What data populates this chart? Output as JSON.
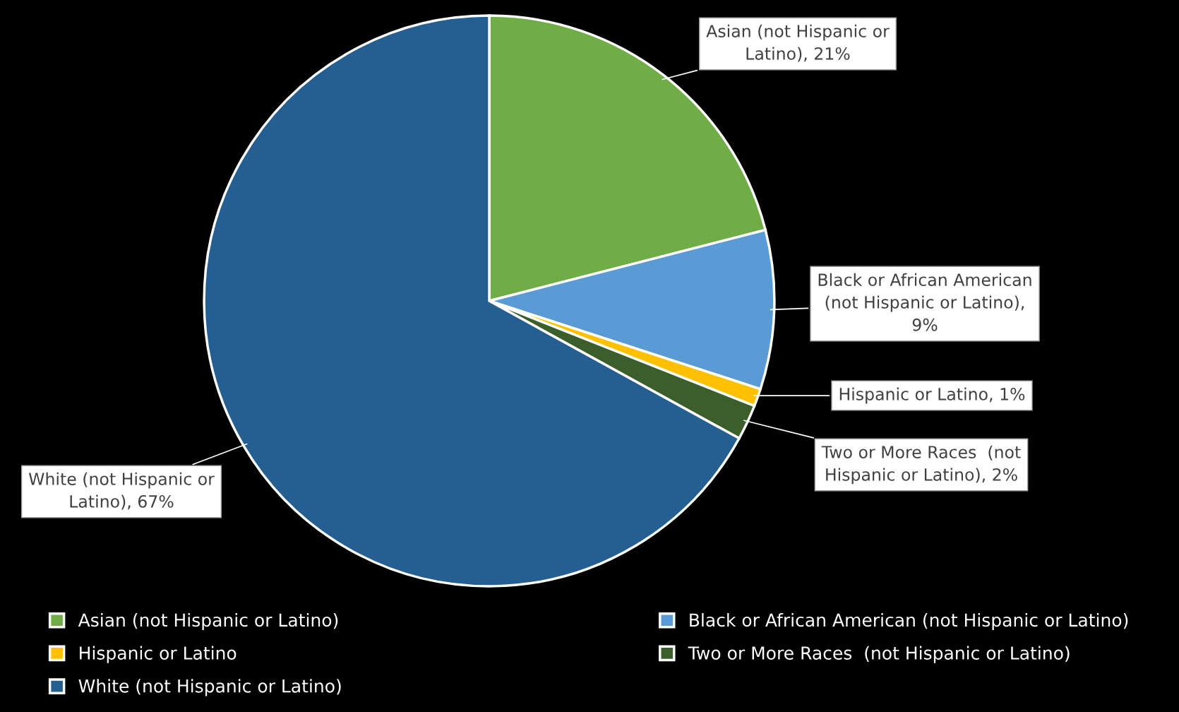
{
  "chart_data": {
    "type": "pie",
    "categories": [
      "Asian (not Hispanic or Latino)",
      "Black or African American (not Hispanic or Latino)",
      "Hispanic or Latino",
      "Two or More Races  (not Hispanic or Latino)",
      "White (not Hispanic or Latino)"
    ],
    "values": [
      21,
      9,
      1,
      2,
      67
    ],
    "colors": [
      "#70ad47",
      "#5b9bd5",
      "#ffc000",
      "#3b5e2b",
      "#255e91"
    ],
    "value_labels": [
      "Asian (not Hispanic or Latino), 21%",
      "Black or African American (not Hispanic or Latino), 9%",
      "Hispanic or Latino, 1%",
      "Two or More Races  (not Hispanic or Latino), 2%",
      "White (not Hispanic or Latino), 67%"
    ],
    "legend": "bottom"
  }
}
